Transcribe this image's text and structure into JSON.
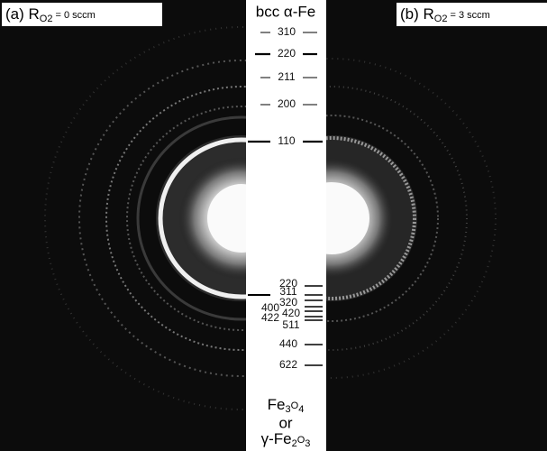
{
  "panels": [
    {
      "label": "(a) R",
      "subscript": "O2",
      "suffix": " = 0 sccm"
    },
    {
      "label": "(b) R",
      "subscript": "O2",
      "suffix": " = 3 sccm"
    }
  ],
  "alpha_fe": {
    "title": "bcc α-Fe",
    "reflections": [
      "310",
      "220",
      "211",
      "200",
      "110"
    ]
  },
  "iron_oxide": {
    "reflections": [
      "220",
      "311",
      "320",
      "400",
      "420",
      "422",
      "511",
      "440",
      "622"
    ],
    "formula_1": [
      "Fe",
      "3",
      "O",
      "4"
    ],
    "or": "or",
    "formula_2": [
      "γ-Fe",
      "2",
      "O",
      "3"
    ]
  }
}
